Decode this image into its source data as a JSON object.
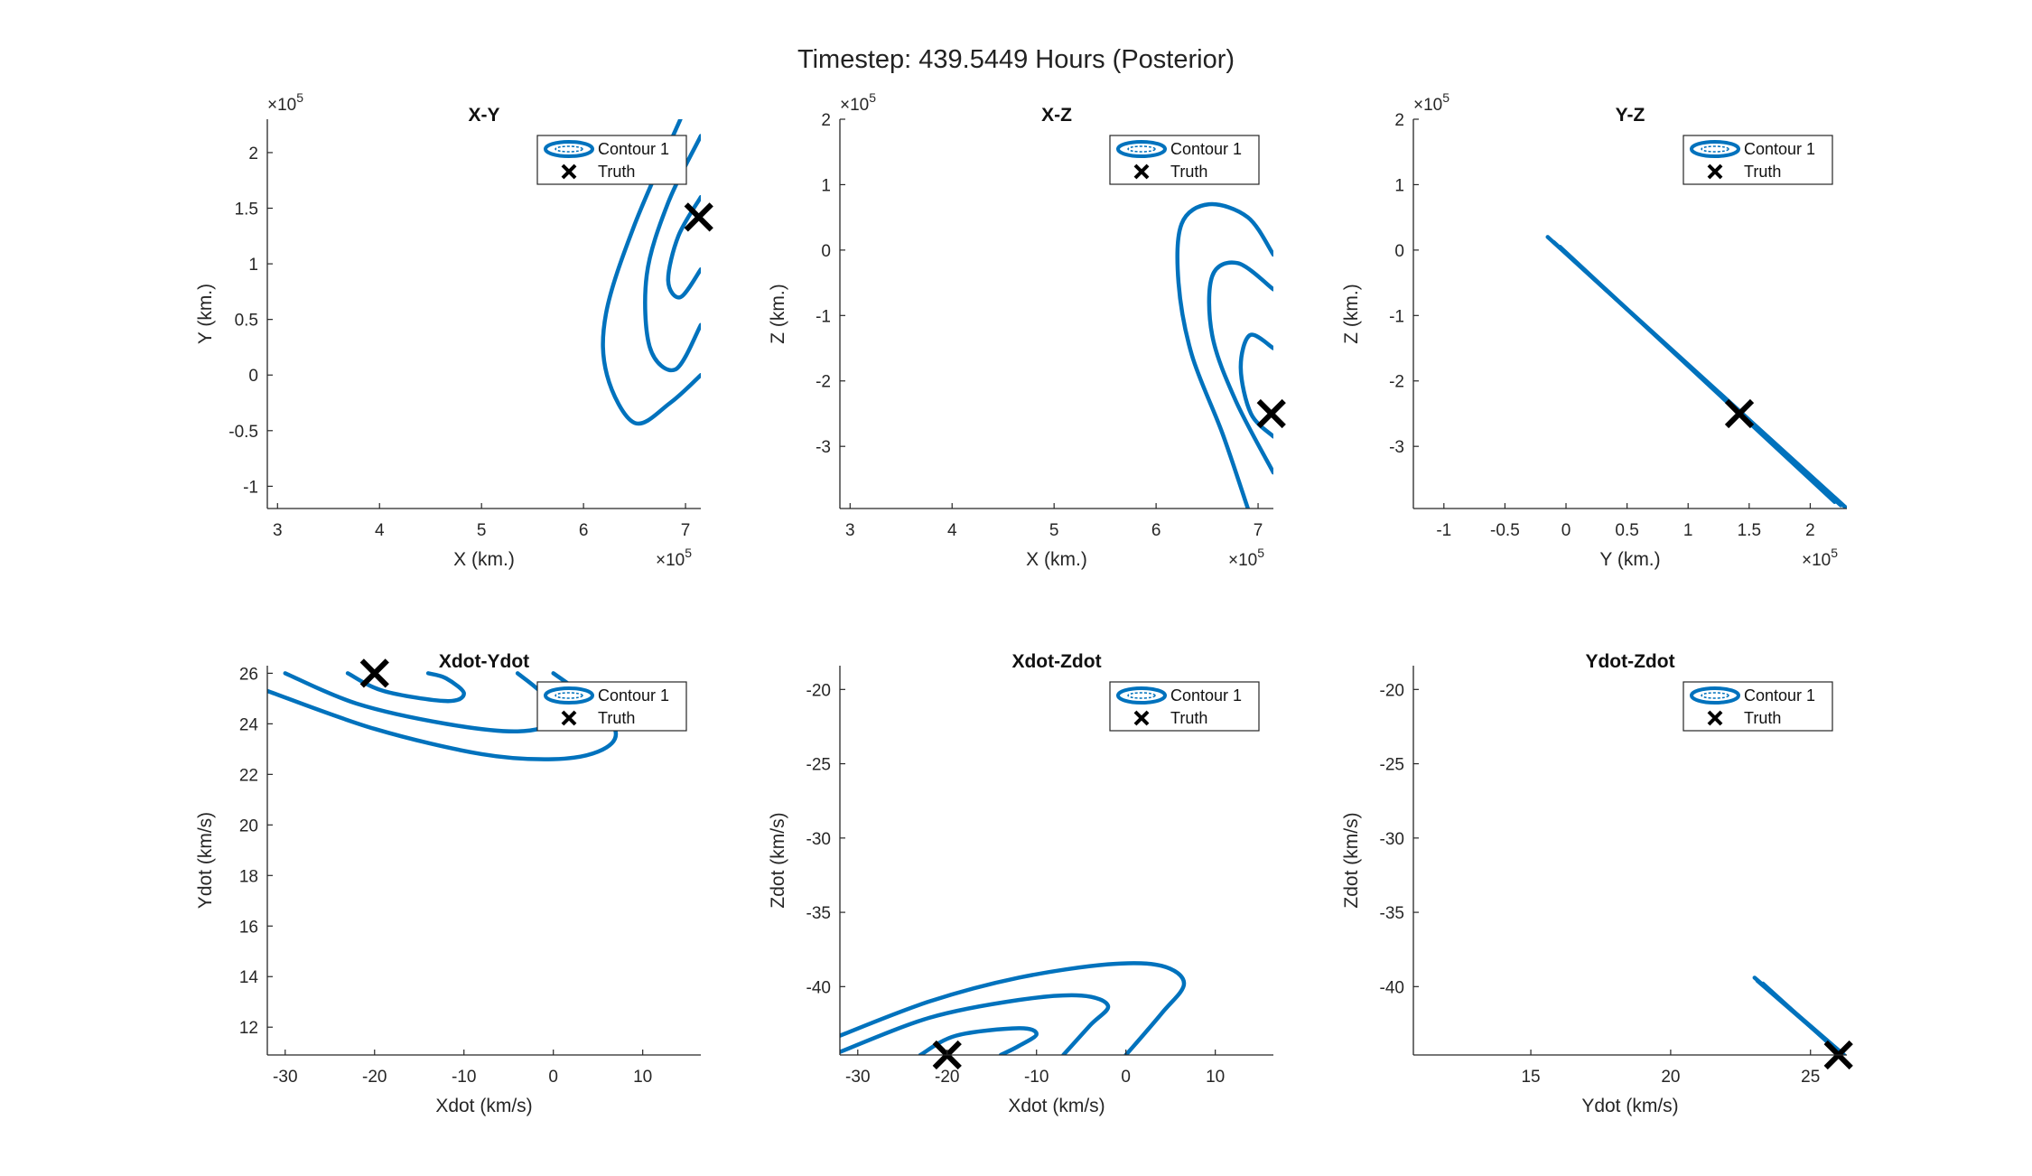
{
  "figure": {
    "title": "Timestep: 439.5449 Hours (Posterior)",
    "colors": {
      "contour": "#0072BD",
      "truth": "#000000",
      "axis": "#262626"
    }
  },
  "chart_data": [
    {
      "type": "line",
      "title": "X-Y",
      "xlabel": "X (km.)",
      "ylabel": "Y (km.)",
      "x_exponent": "5",
      "y_exponent": "5",
      "xlim": [
        2.9,
        7.15
      ],
      "ylim": [
        -1.2,
        2.3
      ],
      "xticks": [
        3,
        4,
        5,
        6,
        7
      ],
      "xticklabels": [
        "3",
        "4",
        "5",
        "6",
        "7"
      ],
      "yticks": [
        -1,
        -0.5,
        0,
        0.5,
        1,
        1.5,
        2
      ],
      "yticklabels": [
        "-1",
        "-0.5",
        "0",
        "0.5",
        "1",
        "1.5",
        "2"
      ],
      "legend": {
        "location": "top-right",
        "entries": [
          "Contour 1",
          "Truth"
        ]
      },
      "series": [
        {
          "name": "Contour 1",
          "contours": [
            [
              [
                6.95,
                2.3
              ],
              [
                6.5,
                1.35
              ],
              [
                6.22,
                0.55
              ],
              [
                6.23,
                0.0
              ],
              [
                6.5,
                -0.43
              ],
              [
                6.85,
                -0.25
              ],
              [
                7.15,
                0.0
              ]
            ],
            [
              [
                7.15,
                2.15
              ],
              [
                6.83,
                1.55
              ],
              [
                6.62,
                0.9
              ],
              [
                6.65,
                0.25
              ],
              [
                6.9,
                0.05
              ],
              [
                7.15,
                0.45
              ]
            ],
            [
              [
                7.15,
                1.6
              ],
              [
                6.93,
                1.25
              ],
              [
                6.83,
                0.85
              ],
              [
                6.95,
                0.7
              ],
              [
                7.15,
                0.95
              ]
            ]
          ]
        },
        {
          "name": "Truth",
          "x": [
            7.13
          ],
          "y": [
            1.42
          ]
        }
      ]
    },
    {
      "type": "line",
      "title": "X-Z",
      "xlabel": "X (km.)",
      "ylabel": "Z (km.)",
      "x_exponent": "5",
      "y_exponent": "5",
      "xlim": [
        2.9,
        7.15
      ],
      "ylim": [
        -3.95,
        2.0
      ],
      "xticks": [
        3,
        4,
        5,
        6,
        7
      ],
      "xticklabels": [
        "3",
        "4",
        "5",
        "6",
        "7"
      ],
      "yticks": [
        -3,
        -2,
        -1,
        0,
        1,
        2
      ],
      "yticklabels": [
        "-3",
        "-2",
        "-1",
        "0",
        "1",
        "2"
      ],
      "legend": {
        "location": "top-right",
        "entries": [
          "Contour 1",
          "Truth"
        ]
      },
      "series": [
        {
          "name": "Contour 1",
          "contours": [
            [
              [
                7.15,
                -0.07
              ],
              [
                6.9,
                0.5
              ],
              [
                6.52,
                0.7
              ],
              [
                6.25,
                0.4
              ],
              [
                6.22,
                -0.5
              ],
              [
                6.35,
                -1.6
              ],
              [
                6.65,
                -2.8
              ],
              [
                6.9,
                -3.95
              ]
            ],
            [
              [
                7.15,
                -0.6
              ],
              [
                6.8,
                -0.2
              ],
              [
                6.55,
                -0.4
              ],
              [
                6.55,
                -1.3
              ],
              [
                6.78,
                -2.3
              ],
              [
                7.15,
                -3.4
              ]
            ],
            [
              [
                7.15,
                -1.5
              ],
              [
                6.92,
                -1.3
              ],
              [
                6.83,
                -1.8
              ],
              [
                6.93,
                -2.5
              ],
              [
                7.15,
                -2.85
              ]
            ]
          ]
        },
        {
          "name": "Truth",
          "x": [
            7.13
          ],
          "y": [
            -2.5
          ]
        }
      ]
    },
    {
      "type": "line",
      "title": "Y-Z",
      "xlabel": "Y (km.)",
      "ylabel": "Z (km.)",
      "x_exponent": "5",
      "y_exponent": "5",
      "xlim": [
        -1.25,
        2.3
      ],
      "ylim": [
        -3.95,
        2.0
      ],
      "xticks": [
        -1,
        -0.5,
        0,
        0.5,
        1,
        1.5,
        2
      ],
      "xticklabels": [
        "-1",
        "-0.5",
        "0",
        "0.5",
        "1",
        "1.5",
        "2"
      ],
      "yticks": [
        -3,
        -2,
        -1,
        0,
        1,
        2
      ],
      "yticklabels": [
        "-3",
        "-2",
        "-1",
        "0",
        "1",
        "2"
      ],
      "legend": {
        "location": "top-right",
        "entries": [
          "Contour 1",
          "Truth"
        ]
      },
      "series": [
        {
          "name": "Contour 1",
          "contours": [
            [
              [
                -0.15,
                0.2
              ],
              [
                2.3,
                -3.95
              ]
            ],
            [
              [
                -0.1,
                0.12
              ],
              [
                2.25,
                -3.9
              ]
            ],
            [
              [
                -0.05,
                0.05
              ],
              [
                2.2,
                -3.85
              ]
            ]
          ]
        },
        {
          "name": "Truth",
          "x": [
            1.42
          ],
          "y": [
            -2.5
          ]
        }
      ]
    },
    {
      "type": "line",
      "title": "Xdot-Ydot",
      "xlabel": "Xdot (km/s)",
      "ylabel": "Ydot (km/s)",
      "xlim": [
        -32,
        16.5
      ],
      "ylim": [
        10.9,
        26.3
      ],
      "xticks": [
        -30,
        -20,
        -10,
        0,
        10
      ],
      "xticklabels": [
        "-30",
        "-20",
        "-10",
        "0",
        "10"
      ],
      "yticks": [
        12,
        14,
        16,
        18,
        20,
        22,
        24,
        26
      ],
      "yticklabels": [
        "12",
        "14",
        "16",
        "18",
        "20",
        "22",
        "24",
        "26"
      ],
      "legend": {
        "location": "top-right",
        "entries": [
          "Contour 1",
          "Truth"
        ]
      },
      "series": [
        {
          "name": "Contour 1",
          "contours": [
            [
              [
                -32,
                25.3
              ],
              [
                -20,
                23.8
              ],
              [
                -8,
                22.8
              ],
              [
                0,
                22.6
              ],
              [
                5,
                22.9
              ],
              [
                7,
                23.6
              ],
              [
                5,
                24.7
              ],
              [
                2,
                25.5
              ],
              [
                0,
                26.0
              ]
            ],
            [
              [
                -30,
                26.0
              ],
              [
                -22,
                24.8
              ],
              [
                -12,
                24.0
              ],
              [
                -4,
                23.7
              ],
              [
                0,
                24.1
              ],
              [
                -1,
                25.1
              ],
              [
                -4,
                26.0
              ]
            ],
            [
              [
                -23,
                26.0
              ],
              [
                -19,
                25.3
              ],
              [
                -12,
                24.9
              ],
              [
                -10,
                25.2
              ],
              [
                -12,
                25.8
              ],
              [
                -14,
                26.0
              ]
            ]
          ]
        },
        {
          "name": "Truth",
          "x": [
            -20
          ],
          "y": [
            26.0
          ]
        }
      ]
    },
    {
      "type": "line",
      "title": "Xdot-Zdot",
      "xlabel": "Xdot (km/s)",
      "ylabel": "Zdot (km/s)",
      "xlim": [
        -32,
        16.5
      ],
      "ylim": [
        -44.6,
        -18.4
      ],
      "xticks": [
        -30,
        -20,
        -10,
        0,
        10
      ],
      "xticklabels": [
        "-30",
        "-20",
        "-10",
        "0",
        "10"
      ],
      "yticks": [
        -40,
        -35,
        -30,
        -25,
        -20
      ],
      "yticklabels": [
        "-40",
        "-35",
        "-30",
        "-25",
        "-20"
      ],
      "legend": {
        "location": "top-right",
        "entries": [
          "Contour 1",
          "Truth"
        ]
      },
      "series": [
        {
          "name": "Contour 1",
          "contours": [
            [
              [
                -32,
                -43.3
              ],
              [
                -22,
                -41.0
              ],
              [
                -12,
                -39.4
              ],
              [
                -2,
                -38.5
              ],
              [
                4,
                -38.6
              ],
              [
                6.5,
                -39.8
              ],
              [
                4,
                -41.8
              ],
              [
                0,
                -44.6
              ]
            ],
            [
              [
                -32,
                -44.4
              ],
              [
                -22,
                -42.1
              ],
              [
                -12,
                -40.9
              ],
              [
                -5,
                -40.6
              ],
              [
                -2,
                -41.3
              ],
              [
                -4,
                -42.6
              ],
              [
                -7,
                -44.6
              ]
            ],
            [
              [
                -23,
                -44.6
              ],
              [
                -19,
                -43.3
              ],
              [
                -12,
                -42.8
              ],
              [
                -10,
                -43.2
              ],
              [
                -12,
                -44.0
              ],
              [
                -14,
                -44.6
              ]
            ]
          ]
        },
        {
          "name": "Truth",
          "x": [
            -20
          ],
          "y": [
            -44.6
          ]
        }
      ]
    },
    {
      "type": "line",
      "title": "Ydot-Zdot",
      "xlabel": "Ydot (km/s)",
      "ylabel": "Zdot (km/s)",
      "xlim": [
        10.8,
        26.3
      ],
      "ylim": [
        -44.6,
        -18.4
      ],
      "xticks": [
        15,
        20,
        25
      ],
      "xticklabels": [
        "15",
        "20",
        "25"
      ],
      "yticks": [
        -40,
        -35,
        -30,
        -25,
        -20
      ],
      "yticklabels": [
        "-40",
        "-35",
        "-30",
        "-25",
        "-20"
      ],
      "legend": {
        "location": "top-right",
        "entries": [
          "Contour 1",
          "Truth"
        ]
      },
      "series": [
        {
          "name": "Contour 1",
          "contours": [
            [
              [
                23.0,
                -39.4
              ],
              [
                26.2,
                -44.6
              ]
            ],
            [
              [
                23.1,
                -39.6
              ],
              [
                26.1,
                -44.5
              ]
            ],
            [
              [
                23.3,
                -39.8
              ],
              [
                26.0,
                -44.4
              ]
            ]
          ]
        },
        {
          "name": "Truth",
          "x": [
            26.0
          ],
          "y": [
            -44.6
          ]
        }
      ]
    }
  ]
}
